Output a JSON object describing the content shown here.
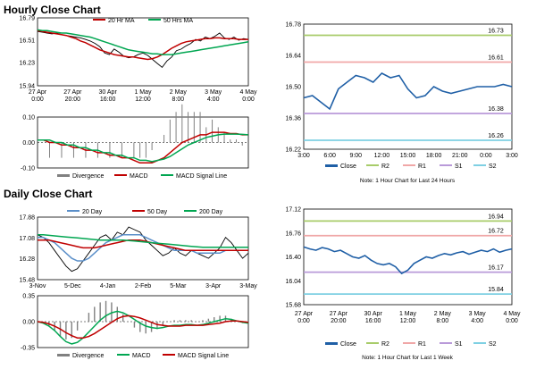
{
  "hourly_title": "Hourly Close Chart",
  "daily_title": "Daily Close Chart",
  "colors": {
    "close": "#1f5fa6",
    "r2": "#a8cc6a",
    "r1": "#f0a7a7",
    "s1": "#b99ad9",
    "s2": "#7fd0e3",
    "ma_red": "#c00000",
    "ma_green": "#00a651",
    "ma_blue": "#5b8fc9",
    "div": "#808080"
  },
  "chart_data": [
    {
      "id": "hourly-price",
      "type": "line",
      "yticks": [
        "16.79",
        "16.51",
        "16.23",
        "15.94"
      ],
      "xticks": [
        "27 Apr\n0:00",
        "27 Apr\n20:00",
        "30 Apr\n16:00",
        "1 May\n12:00",
        "2 May\n8:00",
        "3 May\n4:00",
        "4 May\n0:00"
      ],
      "legend": [
        "20 Hr MA",
        "50 Hrs MA"
      ],
      "series": [
        {
          "name": "Close",
          "color": "#000000",
          "values": [
            16.62,
            16.61,
            16.6,
            16.59,
            16.6,
            16.58,
            16.57,
            16.56,
            16.55,
            16.54,
            16.52,
            16.5,
            16.47,
            16.43,
            16.35,
            16.33,
            16.4,
            16.36,
            16.31,
            16.29,
            16.3,
            16.33,
            16.35,
            16.32,
            16.27,
            16.22,
            16.17,
            16.25,
            16.3,
            16.38,
            16.4,
            16.44,
            16.47,
            16.52,
            16.5,
            16.55,
            16.53,
            16.56,
            16.6,
            16.54,
            16.52,
            16.55,
            16.51,
            16.53,
            16.52
          ]
        },
        {
          "name": "20 Hr MA",
          "color": "#c00000",
          "values": [
            16.63,
            16.62,
            16.61,
            16.6,
            16.59,
            16.58,
            16.57,
            16.55,
            16.53,
            16.5,
            16.48,
            16.45,
            16.42,
            16.39,
            16.37,
            16.35,
            16.33,
            16.32,
            16.31,
            16.3,
            16.3,
            16.29,
            16.28,
            16.27,
            16.28,
            16.3,
            16.33,
            16.37,
            16.41,
            16.44,
            16.47,
            16.49,
            16.5,
            16.51,
            16.52,
            16.53,
            16.53,
            16.54,
            16.54,
            16.53,
            16.53,
            16.53,
            16.52,
            16.52,
            16.52
          ]
        },
        {
          "name": "50 Hrs MA",
          "color": "#00a651",
          "values": [
            16.64,
            16.63,
            16.63,
            16.62,
            16.61,
            16.6,
            16.6,
            16.59,
            16.58,
            16.57,
            16.56,
            16.55,
            16.53,
            16.51,
            16.49,
            16.47,
            16.45,
            16.43,
            16.41,
            16.39,
            16.38,
            16.37,
            16.36,
            16.35,
            16.34,
            16.34,
            16.33,
            16.33,
            16.33,
            16.34,
            16.35,
            16.36,
            16.37,
            16.38,
            16.39,
            16.4,
            16.41,
            16.42,
            16.43,
            16.44,
            16.45,
            16.46,
            16.47,
            16.48,
            16.49
          ]
        }
      ],
      "ylim": [
        15.94,
        16.79
      ]
    },
    {
      "id": "hourly-macd",
      "type": "line",
      "yticks": [
        "0.10",
        "0.00",
        "-0.10"
      ],
      "legend": [
        "Divergence",
        "MACD",
        "MACD Signal Line"
      ],
      "ylim": [
        -0.1,
        0.1
      ],
      "series": [
        {
          "name": "MACD",
          "color": "#c00000",
          "values": [
            0.01,
            0.01,
            0.0,
            0.0,
            -0.01,
            -0.01,
            -0.02,
            -0.02,
            -0.03,
            -0.03,
            -0.04,
            -0.04,
            -0.05,
            -0.05,
            -0.06,
            -0.06,
            -0.07,
            -0.08,
            -0.08,
            -0.08,
            -0.07,
            -0.06,
            -0.04,
            -0.02,
            0.0,
            0.01,
            0.02,
            0.03,
            0.03,
            0.04,
            0.04,
            0.04,
            0.035,
            0.035,
            0.03,
            0.03
          ]
        },
        {
          "name": "MACD Signal Line",
          "color": "#00a651",
          "values": [
            0.01,
            0.01,
            0.01,
            0.0,
            0.0,
            -0.01,
            -0.01,
            -0.02,
            -0.02,
            -0.03,
            -0.03,
            -0.04,
            -0.04,
            -0.05,
            -0.05,
            -0.06,
            -0.06,
            -0.07,
            -0.07,
            -0.075,
            -0.07,
            -0.065,
            -0.055,
            -0.04,
            -0.025,
            -0.01,
            0.0,
            0.01,
            0.02,
            0.025,
            0.03,
            0.033,
            0.033,
            0.033,
            0.032,
            0.03
          ]
        }
      ]
    },
    {
      "id": "hourly-24h",
      "type": "line",
      "yticks": [
        "16.78",
        "16.64",
        "16.50",
        "16.36",
        "16.22"
      ],
      "xticks": [
        "3:00",
        "6:00",
        "9:00",
        "12:00",
        "15:00",
        "18:00",
        "21:00",
        "0:00",
        "3:00"
      ],
      "ylim": [
        16.22,
        16.78
      ],
      "levels": [
        {
          "name": "R2",
          "value": 16.73,
          "label": "16.73"
        },
        {
          "name": "R1",
          "value": 16.61,
          "label": "16.61"
        },
        {
          "name": "S1",
          "value": 16.38,
          "label": "16.38"
        },
        {
          "name": "S2",
          "value": 16.26,
          "label": "16.26"
        }
      ],
      "series": [
        {
          "name": "Close",
          "values": [
            16.45,
            16.46,
            16.43,
            16.4,
            16.49,
            16.52,
            16.55,
            16.54,
            16.52,
            16.56,
            16.54,
            16.55,
            16.49,
            16.45,
            16.46,
            16.5,
            16.48,
            16.47,
            16.48,
            16.49,
            16.5,
            16.5,
            16.5,
            16.51,
            16.5
          ]
        }
      ],
      "legend": [
        "Close",
        "R2",
        "R1",
        "S1",
        "S2"
      ],
      "note": "Note: 1 Hour Chart for Last 24 Hours"
    },
    {
      "id": "daily-price",
      "type": "line",
      "yticks": [
        "17.88",
        "17.08",
        "16.28",
        "15.48"
      ],
      "xticks": [
        "3-Nov",
        "5-Dec",
        "4-Jan",
        "2-Feb",
        "5-Mar",
        "3-Apr",
        "3-May"
      ],
      "legend": [
        "20 Day",
        "50 Day",
        "200 Day"
      ],
      "ylim": [
        15.48,
        17.88
      ],
      "series": [
        {
          "name": "Close",
          "color": "#000000",
          "values": [
            17.2,
            17.1,
            16.9,
            16.6,
            16.3,
            16.0,
            15.8,
            15.9,
            16.2,
            16.5,
            16.8,
            17.1,
            17.2,
            17.0,
            17.3,
            17.2,
            17.5,
            17.4,
            17.3,
            17.0,
            16.8,
            16.6,
            16.4,
            16.5,
            16.7,
            16.5,
            16.4,
            16.6,
            16.5,
            16.4,
            16.3,
            16.5,
            16.7,
            17.1,
            16.9,
            16.6,
            16.3,
            16.5
          ]
        },
        {
          "name": "20 Day",
          "color": "#5b8fc9",
          "values": [
            17.1,
            17.1,
            17.0,
            16.9,
            16.7,
            16.5,
            16.3,
            16.2,
            16.2,
            16.3,
            16.5,
            16.7,
            16.9,
            17.0,
            17.1,
            17.2,
            17.2,
            17.2,
            17.2,
            17.1,
            17.0,
            16.9,
            16.8,
            16.7,
            16.6,
            16.6,
            16.6,
            16.6,
            16.5,
            16.5,
            16.5,
            16.5,
            16.5,
            16.6,
            16.6,
            16.6,
            16.6,
            16.6
          ]
        },
        {
          "name": "50 Day",
          "color": "#c00000",
          "values": [
            17.0,
            17.0,
            17.0,
            16.95,
            16.9,
            16.85,
            16.8,
            16.75,
            16.7,
            16.7,
            16.7,
            16.75,
            16.8,
            16.85,
            16.9,
            16.95,
            17.0,
            17.0,
            17.0,
            16.95,
            16.9,
            16.85,
            16.8,
            16.75,
            16.7,
            16.65,
            16.6,
            16.6,
            16.6,
            16.6,
            16.6,
            16.6,
            16.6,
            16.6,
            16.6,
            16.6,
            16.6,
            16.6
          ]
        },
        {
          "name": "200 Day",
          "color": "#00a651",
          "values": [
            17.2,
            17.2,
            17.18,
            17.16,
            17.14,
            17.12,
            17.1,
            17.08,
            17.06,
            17.04,
            17.02,
            17.0,
            17.0,
            17.0,
            17.0,
            17.0,
            16.98,
            16.96,
            16.94,
            16.92,
            16.9,
            16.88,
            16.86,
            16.84,
            16.82,
            16.8,
            16.78,
            16.76,
            16.74,
            16.72,
            16.72,
            16.72,
            16.72,
            16.72,
            16.72,
            16.72,
            16.72,
            16.72
          ]
        }
      ]
    },
    {
      "id": "daily-macd",
      "type": "line",
      "yticks": [
        "0.35",
        "0.00",
        "-0.35"
      ],
      "legend": [
        "Divergence",
        "MACD",
        "MACD Signal Line"
      ],
      "ylim": [
        -0.35,
        0.35
      ],
      "series": [
        {
          "name": "MACD",
          "color": "#00a651",
          "values": [
            0.0,
            -0.02,
            -0.06,
            -0.12,
            -0.2,
            -0.27,
            -0.3,
            -0.28,
            -0.22,
            -0.14,
            -0.06,
            0.02,
            0.08,
            0.12,
            0.14,
            0.12,
            0.08,
            0.03,
            -0.02,
            -0.06,
            -0.08,
            -0.09,
            -0.08,
            -0.06,
            -0.05,
            -0.05,
            -0.04,
            -0.04,
            -0.05,
            -0.04,
            -0.02,
            0.0,
            0.02,
            0.04,
            0.03,
            0.01,
            -0.01,
            -0.02
          ]
        },
        {
          "name": "MACD Signal Line",
          "color": "#c00000",
          "values": [
            0.0,
            -0.01,
            -0.03,
            -0.06,
            -0.1,
            -0.15,
            -0.19,
            -0.22,
            -0.22,
            -0.2,
            -0.16,
            -0.11,
            -0.06,
            -0.01,
            0.04,
            0.07,
            0.08,
            0.07,
            0.05,
            0.02,
            -0.01,
            -0.04,
            -0.05,
            -0.06,
            -0.06,
            -0.06,
            -0.05,
            -0.05,
            -0.05,
            -0.05,
            -0.04,
            -0.03,
            -0.02,
            0.0,
            0.01,
            0.01,
            0.0,
            -0.01
          ]
        }
      ]
    },
    {
      "id": "daily-week",
      "type": "line",
      "yticks": [
        "17.12",
        "16.76",
        "16.40",
        "16.04",
        "15.68"
      ],
      "xticks": [
        "27 Apr\n0:00",
        "27 Apr\n20:00",
        "30 Apr\n16:00",
        "1 May\n12:00",
        "2 May\n8:00",
        "3 May\n4:00",
        "4 May\n0:00"
      ],
      "ylim": [
        15.68,
        17.12
      ],
      "levels": [
        {
          "name": "R2",
          "value": 16.94,
          "label": "16.94"
        },
        {
          "name": "R1",
          "value": 16.72,
          "label": "16.72"
        },
        {
          "name": "S1",
          "value": 16.17,
          "label": "16.17"
        },
        {
          "name": "S2",
          "value": 15.84,
          "label": "15.84"
        }
      ],
      "series": [
        {
          "name": "Close",
          "values": [
            16.55,
            16.52,
            16.5,
            16.54,
            16.52,
            16.48,
            16.5,
            16.45,
            16.4,
            16.38,
            16.42,
            16.35,
            16.3,
            16.28,
            16.3,
            16.25,
            16.15,
            16.2,
            16.3,
            16.35,
            16.4,
            16.38,
            16.42,
            16.45,
            16.43,
            16.46,
            16.48,
            16.44,
            16.47,
            16.5,
            16.48,
            16.52,
            16.47,
            16.5,
            16.52
          ]
        }
      ],
      "legend": [
        "Close",
        "R2",
        "R1",
        "S1",
        "S2"
      ],
      "note": "Note: 1 Hour Chart for Last 1 Week"
    }
  ]
}
